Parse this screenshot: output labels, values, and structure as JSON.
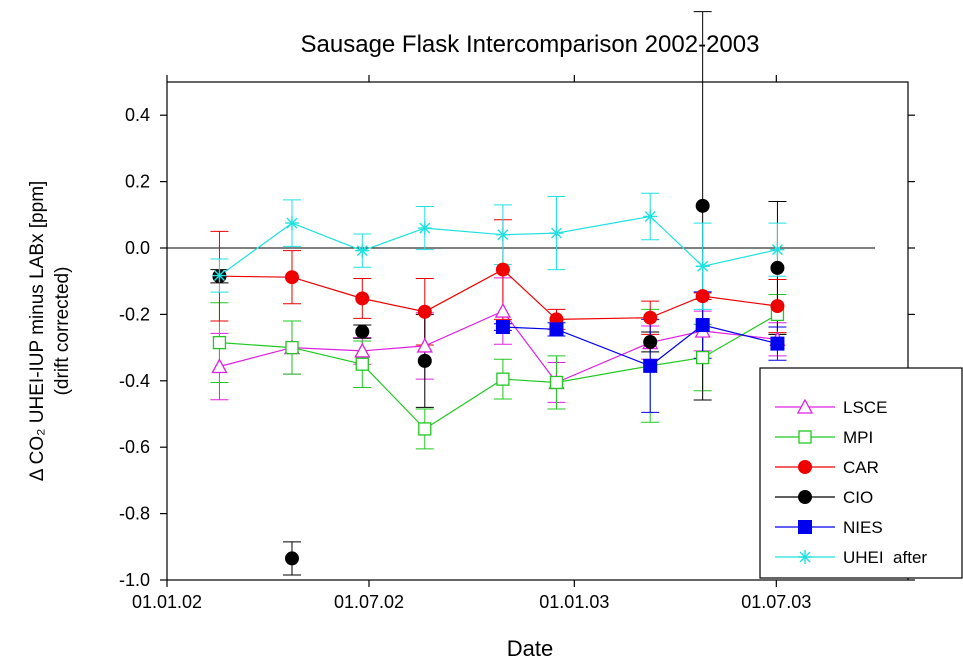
{
  "chart_data": {
    "type": "line",
    "title": "Sausage Flask Intercomparison 2002-2003",
    "xlabel": "Date",
    "ylabel": [
      "Δ CO₂ UHEI-IUP minus LABx [ppm]",
      "(drift corrected)"
    ],
    "x": [
      "2002-02-17",
      "2002-04-23",
      "2002-06-25",
      "2002-08-20",
      "2002-10-29",
      "2002-12-16",
      "2003-03-10",
      "2003-04-26",
      "2003-07-02"
    ],
    "xlim": [
      "2002-01-01",
      "2003-10-27"
    ],
    "xticks": [
      {
        "value": "2002-01-01",
        "label": "01.01.02"
      },
      {
        "value": "2002-07-01",
        "label": "01.07.02"
      },
      {
        "value": "2003-01-01",
        "label": "01.01.03"
      },
      {
        "value": "2003-07-01",
        "label": "01.07.03"
      }
    ],
    "ylim": [
      -1.0,
      0.5
    ],
    "yticks": [
      {
        "value": -1.0,
        "label": "-1.0"
      },
      -0.8,
      -0.6,
      -0.4,
      -0.2,
      {
        "value": 0,
        "label": "0.0"
      },
      0.2,
      0.4
    ],
    "reference_line": 0,
    "legend": "lower-right",
    "series": [
      {
        "name": "LSCE",
        "color": "#e020e0",
        "marker": "triangle-open",
        "line": true,
        "values": [
          -0.357,
          -0.3,
          -0.31,
          -0.295,
          -0.19,
          -0.405,
          -0.285,
          -0.25,
          -0.275
        ],
        "errors": [
          0.1,
          0.08,
          0.04,
          0.1,
          0.1,
          0.06,
          0.05,
          0.06,
          0.05
        ]
      },
      {
        "name": "MPI",
        "color": "#20c820",
        "marker": "square-open",
        "line": true,
        "values": [
          -0.285,
          -0.3,
          -0.35,
          -0.545,
          -0.395,
          -0.405,
          -0.355,
          -0.33,
          -0.2
        ],
        "errors": [
          0.12,
          0.08,
          0.07,
          0.06,
          0.06,
          0.08,
          0.17,
          0.1,
          0.06
        ]
      },
      {
        "name": "CAR",
        "color": "#ee0000",
        "marker": "circle",
        "line": true,
        "values": [
          -0.085,
          -0.088,
          -0.152,
          -0.192,
          -0.065,
          -0.215,
          -0.21,
          -0.145,
          -0.175
        ],
        "errors": [
          0.135,
          0.08,
          0.06,
          0.1,
          0.15,
          0.03,
          0.05,
          0.01,
          0.08
        ]
      },
      {
        "name": "CIO",
        "color": "#000000",
        "marker": "circle",
        "line": false,
        "values": [
          -0.085,
          -0.935,
          -0.252,
          -0.34,
          null,
          null,
          -0.283,
          0.127,
          -0.06
        ],
        "errors": [
          0.02,
          0.05,
          0.02,
          0.14,
          null,
          null,
          0.03,
          0.585,
          0.2
        ]
      },
      {
        "name": "NIES",
        "color": "#0000ee",
        "marker": "square",
        "line": true,
        "values": [
          null,
          null,
          null,
          null,
          -0.238,
          -0.245,
          -0.355,
          -0.232,
          -0.288
        ],
        "errors": [
          null,
          null,
          null,
          null,
          0.01,
          0.02,
          0.14,
          0.1,
          0.05
        ]
      },
      {
        "name": "UHEI  after",
        "color": "#20e0e0",
        "marker": "star",
        "line": true,
        "values": [
          -0.083,
          0.075,
          -0.008,
          0.06,
          0.04,
          0.045,
          0.095,
          -0.055,
          -0.005
        ],
        "errors": [
          0.05,
          0.07,
          0.05,
          0.065,
          0.09,
          0.11,
          0.07,
          0.13,
          0.08
        ]
      }
    ]
  }
}
